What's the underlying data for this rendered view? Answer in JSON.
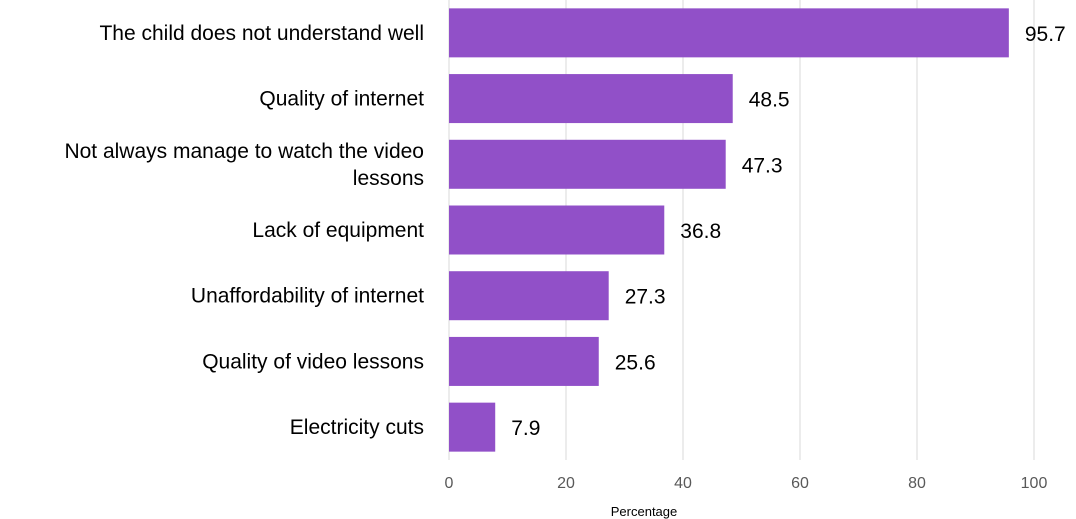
{
  "chart_data": {
    "type": "bar",
    "orientation": "horizontal",
    "categories": [
      "The child does not understand well",
      "Quality of internet",
      "Not always manage to watch the video lessons",
      "Lack of equipment",
      "Unaffordability of internet",
      "Quality of video lessons",
      "Electricity cuts"
    ],
    "category_lines": [
      [
        "The child does not understand well"
      ],
      [
        "Quality of internet"
      ],
      [
        "Not always manage to watch the video",
        "lessons"
      ],
      [
        "Lack of equipment"
      ],
      [
        "Unaffordability of internet"
      ],
      [
        "Quality of video lessons"
      ],
      [
        "Electricity cuts"
      ]
    ],
    "values": [
      95.7,
      48.5,
      47.3,
      36.8,
      27.3,
      25.6,
      7.9
    ],
    "value_labels": [
      "95.7",
      "48.5",
      "47.3",
      "36.8",
      "27.3",
      "25.6",
      "7.9"
    ],
    "xlabel": "Percentage",
    "ylabel": "",
    "xlim": [
      0,
      100
    ],
    "xticks": [
      "0",
      "20",
      "40",
      "60",
      "80",
      "100"
    ],
    "grid": true,
    "legend": "none",
    "colors": {
      "bar": "#9150C8",
      "grid": "#D9D9D9",
      "tick_text": "#595959"
    }
  }
}
